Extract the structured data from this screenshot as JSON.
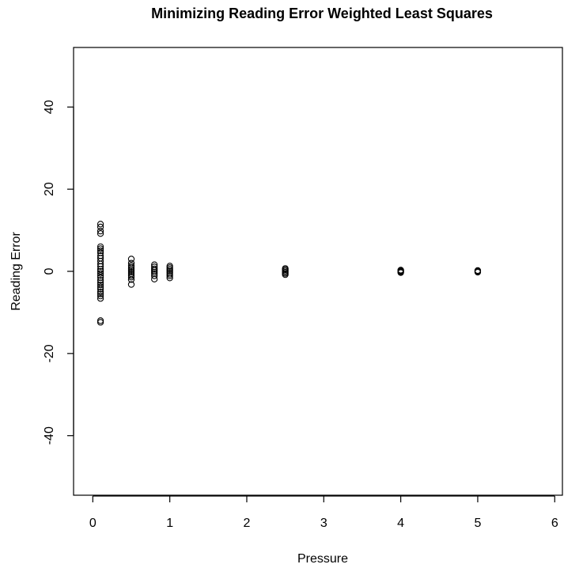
{
  "chart_data": {
    "type": "scatter",
    "title": "Minimizing Reading Error Weighted Least Squares",
    "xlabel": "Pressure",
    "ylabel": "Reading Error",
    "xlim": [
      -0.25,
      6.1
    ],
    "ylim": [
      -54.5,
      54.5
    ],
    "xticks": [
      0,
      1,
      2,
      3,
      4,
      5,
      6
    ],
    "yticks": [
      -40,
      -20,
      0,
      20,
      40
    ],
    "grid": false,
    "legend": "none",
    "marker": "open-circle",
    "series": [
      {
        "points": [
          [
            0.1,
            11.5
          ],
          [
            0.1,
            10.8
          ],
          [
            0.1,
            9.8
          ],
          [
            0.1,
            9.2
          ],
          [
            0.1,
            6.0
          ],
          [
            0.1,
            5.5
          ],
          [
            0.1,
            5.0
          ],
          [
            0.1,
            4.5
          ],
          [
            0.1,
            3.8
          ],
          [
            0.1,
            3.2
          ],
          [
            0.1,
            2.5
          ],
          [
            0.1,
            1.8
          ],
          [
            0.1,
            1.2
          ],
          [
            0.1,
            0.5
          ],
          [
            0.1,
            0.0
          ],
          [
            0.1,
            -0.5
          ],
          [
            0.1,
            -1.0
          ],
          [
            0.1,
            -1.5
          ],
          [
            0.1,
            -2.2
          ],
          [
            0.1,
            -2.8
          ],
          [
            0.1,
            -3.3
          ],
          [
            0.1,
            -3.8
          ],
          [
            0.1,
            -4.3
          ],
          [
            0.1,
            -5.0
          ],
          [
            0.1,
            -5.5
          ],
          [
            0.1,
            -6.0
          ],
          [
            0.1,
            -6.6
          ],
          [
            0.1,
            -12.0
          ],
          [
            0.1,
            -12.4
          ],
          [
            0.5,
            3.0
          ],
          [
            0.5,
            2.0
          ],
          [
            0.5,
            1.4
          ],
          [
            0.5,
            1.0
          ],
          [
            0.5,
            0.6
          ],
          [
            0.5,
            0.2
          ],
          [
            0.5,
            -0.2
          ],
          [
            0.5,
            -0.6
          ],
          [
            0.5,
            -1.0
          ],
          [
            0.5,
            -1.4
          ],
          [
            0.5,
            -2.0
          ],
          [
            0.5,
            -3.2
          ],
          [
            0.8,
            1.6
          ],
          [
            0.8,
            1.1
          ],
          [
            0.8,
            0.6
          ],
          [
            0.8,
            0.2
          ],
          [
            0.8,
            -0.2
          ],
          [
            0.8,
            -0.6
          ],
          [
            0.8,
            -1.1
          ],
          [
            0.8,
            -1.9
          ],
          [
            1.0,
            1.3
          ],
          [
            1.0,
            0.9
          ],
          [
            1.0,
            0.5
          ],
          [
            1.0,
            0.1
          ],
          [
            1.0,
            -0.3
          ],
          [
            1.0,
            -0.7
          ],
          [
            1.0,
            -1.1
          ],
          [
            1.0,
            -1.6
          ],
          [
            2.5,
            0.7
          ],
          [
            2.5,
            0.4
          ],
          [
            2.5,
            0.1
          ],
          [
            2.5,
            -0.2
          ],
          [
            2.5,
            -0.5
          ],
          [
            2.5,
            -0.8
          ],
          [
            4.0,
            0.3
          ],
          [
            4.0,
            0.1
          ],
          [
            4.0,
            -0.1
          ],
          [
            4.0,
            -0.3
          ],
          [
            5.0,
            0.2
          ],
          [
            5.0,
            0.0
          ],
          [
            5.0,
            -0.2
          ]
        ]
      }
    ]
  }
}
